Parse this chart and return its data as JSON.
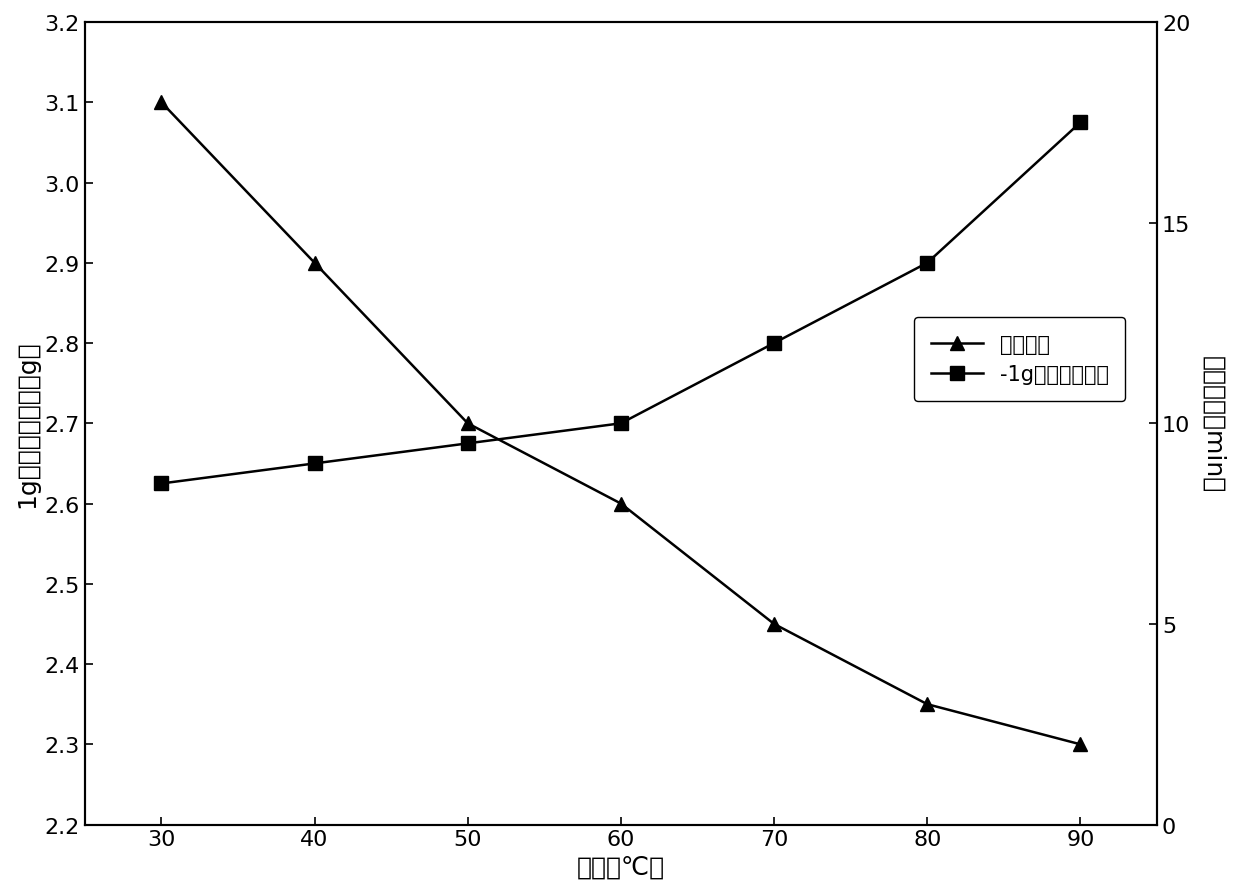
{
  "x": [
    30,
    40,
    50,
    60,
    70,
    80,
    90
  ],
  "y_triangle_left": [
    3.1,
    2.9,
    2.7,
    2.6,
    2.45,
    2.35,
    2.3
  ],
  "y_square_right": [
    8.5,
    9.0,
    9.5,
    10.0,
    12.0,
    14.0,
    17.5
  ],
  "left_ylim": [
    2.2,
    3.2
  ],
  "right_ylim": [
    0,
    20
  ],
  "left_yticks": [
    2.2,
    2.3,
    2.4,
    2.5,
    2.6,
    2.7,
    2.8,
    2.9,
    3.0,
    3.1,
    3.2
  ],
  "right_yticks": [
    0,
    5,
    10,
    15,
    20
  ],
  "xticks": [
    30,
    40,
    50,
    60,
    70,
    80,
    90
  ],
  "xlim": [
    25,
    95
  ],
  "xlabel": "温度（℃）",
  "ylabel_left": "1g溶硫剂溶硫量（g）",
  "ylabel_right": "溶硫时间（min）",
  "legend1": "溶硫时间",
  "legend2": "-1g溶硫剂溶硫量",
  "line_color": "#000000",
  "marker_triangle": "^",
  "marker_square": "s",
  "marker_size": 10,
  "line_width": 1.8,
  "font_size": 18,
  "tick_font_size": 16,
  "legend_font_size": 15,
  "background_color": "#ffffff"
}
